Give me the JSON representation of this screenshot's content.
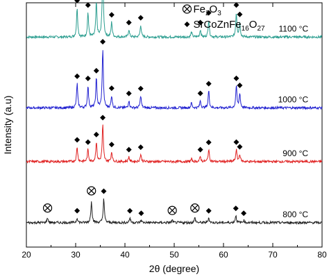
{
  "chart_data": {
    "type": "line",
    "xlabel": "2θ (degree)",
    "ylabel": "Intensity (a.u)",
    "xlim": [
      20,
      80
    ],
    "xticks": [
      20,
      30,
      40,
      50,
      60,
      70,
      80
    ],
    "grid": false,
    "legend_position": "top-right",
    "legend": [
      {
        "marker": "circle-x",
        "label": "Fe",
        "sub": "2",
        "label2": "O",
        "sub2": "3"
      },
      {
        "marker": "diamond",
        "label": "SrCoZnFe",
        "sub": "16",
        "label2": "O",
        "sub2": "27"
      }
    ],
    "series": [
      {
        "name": "1100 °C",
        "color": "#2a9d8f",
        "baseline": 0.86,
        "noise": 0.01,
        "peaks": [
          [
            30.3,
            0.12
          ],
          [
            32.5,
            0.1
          ],
          [
            34.2,
            0.14
          ],
          [
            35.5,
            0.3
          ],
          [
            37.3,
            0.06
          ],
          [
            40.8,
            0.03
          ],
          [
            43.2,
            0.05
          ],
          [
            53.5,
            0.02
          ],
          [
            55.3,
            0.03
          ],
          [
            57.0,
            0.07
          ],
          [
            62.6,
            0.1
          ],
          [
            63.3,
            0.06
          ]
        ],
        "markers": [
          {
            "x": 30.3,
            "type": "diamond"
          },
          {
            "x": 32.5,
            "type": "diamond"
          },
          {
            "x": 34.2,
            "type": "diamond"
          },
          {
            "x": 35.5,
            "type": "diamond"
          },
          {
            "x": 37.3,
            "type": "diamond"
          },
          {
            "x": 40.8,
            "type": "diamond"
          },
          {
            "x": 43.2,
            "type": "diamond"
          },
          {
            "x": 55.3,
            "type": "diamond"
          },
          {
            "x": 57.0,
            "type": "diamond"
          },
          {
            "x": 62.6,
            "type": "diamond"
          },
          {
            "x": 63.3,
            "type": "diamond"
          }
        ]
      },
      {
        "name": "1000 °C",
        "color": "#2020d0",
        "baseline": 0.57,
        "noise": 0.01,
        "peaks": [
          [
            30.3,
            0.1
          ],
          [
            32.5,
            0.09
          ],
          [
            34.2,
            0.12
          ],
          [
            35.5,
            0.24
          ],
          [
            37.3,
            0.05
          ],
          [
            40.8,
            0.03
          ],
          [
            43.2,
            0.05
          ],
          [
            53.5,
            0.02
          ],
          [
            55.3,
            0.03
          ],
          [
            57.0,
            0.07
          ],
          [
            62.6,
            0.09
          ],
          [
            63.3,
            0.06
          ]
        ],
        "markers": [
          {
            "x": 30.3,
            "type": "diamond"
          },
          {
            "x": 32.5,
            "type": "diamond"
          },
          {
            "x": 34.2,
            "type": "diamond"
          },
          {
            "x": 35.5,
            "type": "diamond"
          },
          {
            "x": 37.3,
            "type": "diamond"
          },
          {
            "x": 40.8,
            "type": "diamond"
          },
          {
            "x": 43.2,
            "type": "diamond"
          },
          {
            "x": 55.3,
            "type": "diamond"
          },
          {
            "x": 57.0,
            "type": "diamond"
          },
          {
            "x": 62.6,
            "type": "diamond"
          },
          {
            "x": 63.3,
            "type": "diamond"
          }
        ]
      },
      {
        "name": "900 °C",
        "color": "#e02020",
        "baseline": 0.35,
        "noise": 0.01,
        "peaks": [
          [
            30.3,
            0.06
          ],
          [
            32.5,
            0.05
          ],
          [
            34.2,
            0.08
          ],
          [
            35.5,
            0.15
          ],
          [
            37.3,
            0.04
          ],
          [
            40.8,
            0.02
          ],
          [
            43.2,
            0.03
          ],
          [
            53.5,
            0.01
          ],
          [
            55.3,
            0.02
          ],
          [
            57.0,
            0.05
          ],
          [
            62.6,
            0.05
          ],
          [
            63.3,
            0.03
          ]
        ],
        "markers": [
          {
            "x": 30.3,
            "type": "diamond"
          },
          {
            "x": 32.5,
            "type": "diamond"
          },
          {
            "x": 34.2,
            "type": "diamond"
          },
          {
            "x": 35.5,
            "type": "diamond"
          },
          {
            "x": 37.3,
            "type": "diamond"
          },
          {
            "x": 40.8,
            "type": "diamond"
          },
          {
            "x": 43.2,
            "type": "diamond"
          },
          {
            "x": 55.3,
            "type": "diamond"
          },
          {
            "x": 57.0,
            "type": "diamond"
          },
          {
            "x": 62.6,
            "type": "diamond"
          },
          {
            "x": 63.3,
            "type": "diamond"
          }
        ]
      },
      {
        "name": "800 °C",
        "color": "#202020",
        "baseline": 0.1,
        "noise": 0.01,
        "peaks": [
          [
            24.3,
            0.02
          ],
          [
            30.3,
            0.02
          ],
          [
            33.2,
            0.09
          ],
          [
            35.7,
            0.1
          ],
          [
            41.0,
            0.02
          ],
          [
            43.3,
            0.01
          ],
          [
            49.6,
            0.01
          ],
          [
            54.2,
            0.02
          ],
          [
            57.0,
            0.02
          ],
          [
            62.5,
            0.03
          ],
          [
            64.1,
            0.01
          ]
        ],
        "markers": [
          {
            "x": 24.3,
            "type": "circle-x"
          },
          {
            "x": 30.3,
            "type": "diamond"
          },
          {
            "x": 33.2,
            "type": "circle-x"
          },
          {
            "x": 35.7,
            "type": "diamond"
          },
          {
            "x": 41.0,
            "type": "diamond"
          },
          {
            "x": 43.3,
            "type": "diamond"
          },
          {
            "x": 49.6,
            "type": "circle-x"
          },
          {
            "x": 54.2,
            "type": "circle-x"
          },
          {
            "x": 57.0,
            "type": "diamond"
          },
          {
            "x": 62.5,
            "type": "diamond"
          },
          {
            "x": 64.1,
            "type": "diamond"
          }
        ]
      }
    ]
  }
}
